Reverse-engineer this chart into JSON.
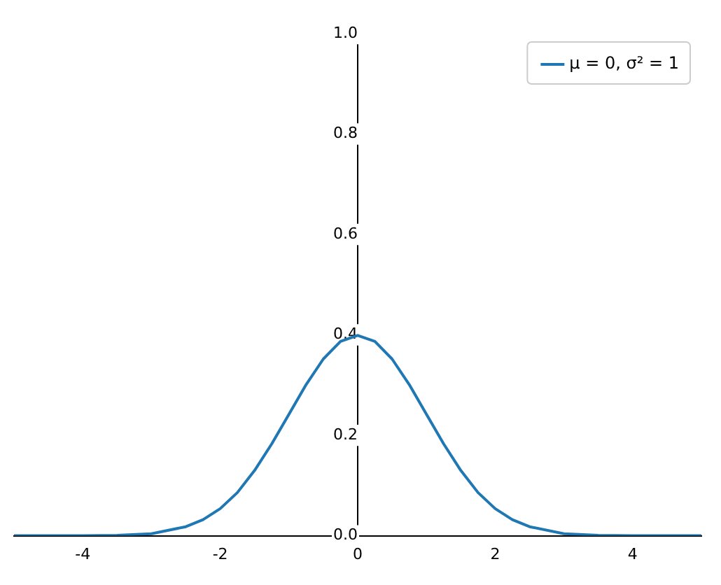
{
  "chart_data": {
    "type": "line",
    "x": [
      -5,
      -4.5,
      -4,
      -3.5,
      -3,
      -2.5,
      -2.25,
      -2,
      -1.75,
      -1.5,
      -1.25,
      -1,
      -0.75,
      -0.5,
      -0.25,
      0,
      0.25,
      0.5,
      0.75,
      1,
      1.25,
      1.5,
      1.75,
      2,
      2.25,
      2.5,
      3,
      3.5,
      4,
      4.5,
      5
    ],
    "series": [
      {
        "name": "μ = 0, σ² = 1",
        "color": "#1f77b4",
        "values": [
          0,
          0,
          0,
          0.001,
          0.004,
          0.018,
          0.032,
          0.054,
          0.086,
          0.13,
          0.183,
          0.242,
          0.301,
          0.352,
          0.387,
          0.399,
          0.387,
          0.352,
          0.301,
          0.242,
          0.183,
          0.13,
          0.086,
          0.054,
          0.032,
          0.018,
          0.004,
          0.001,
          0,
          0,
          0
        ]
      }
    ],
    "xlim": [
      -5,
      5
    ],
    "xticks": [
      -4,
      -2,
      0,
      2,
      4
    ],
    "ylim": [
      0,
      1
    ],
    "yticks": [
      {
        "value": 0,
        "label": "0.0"
      },
      0.2,
      0.4,
      0.6,
      0.8,
      {
        "value": 1,
        "label": "1.0"
      }
    ],
    "legend": "top right"
  }
}
